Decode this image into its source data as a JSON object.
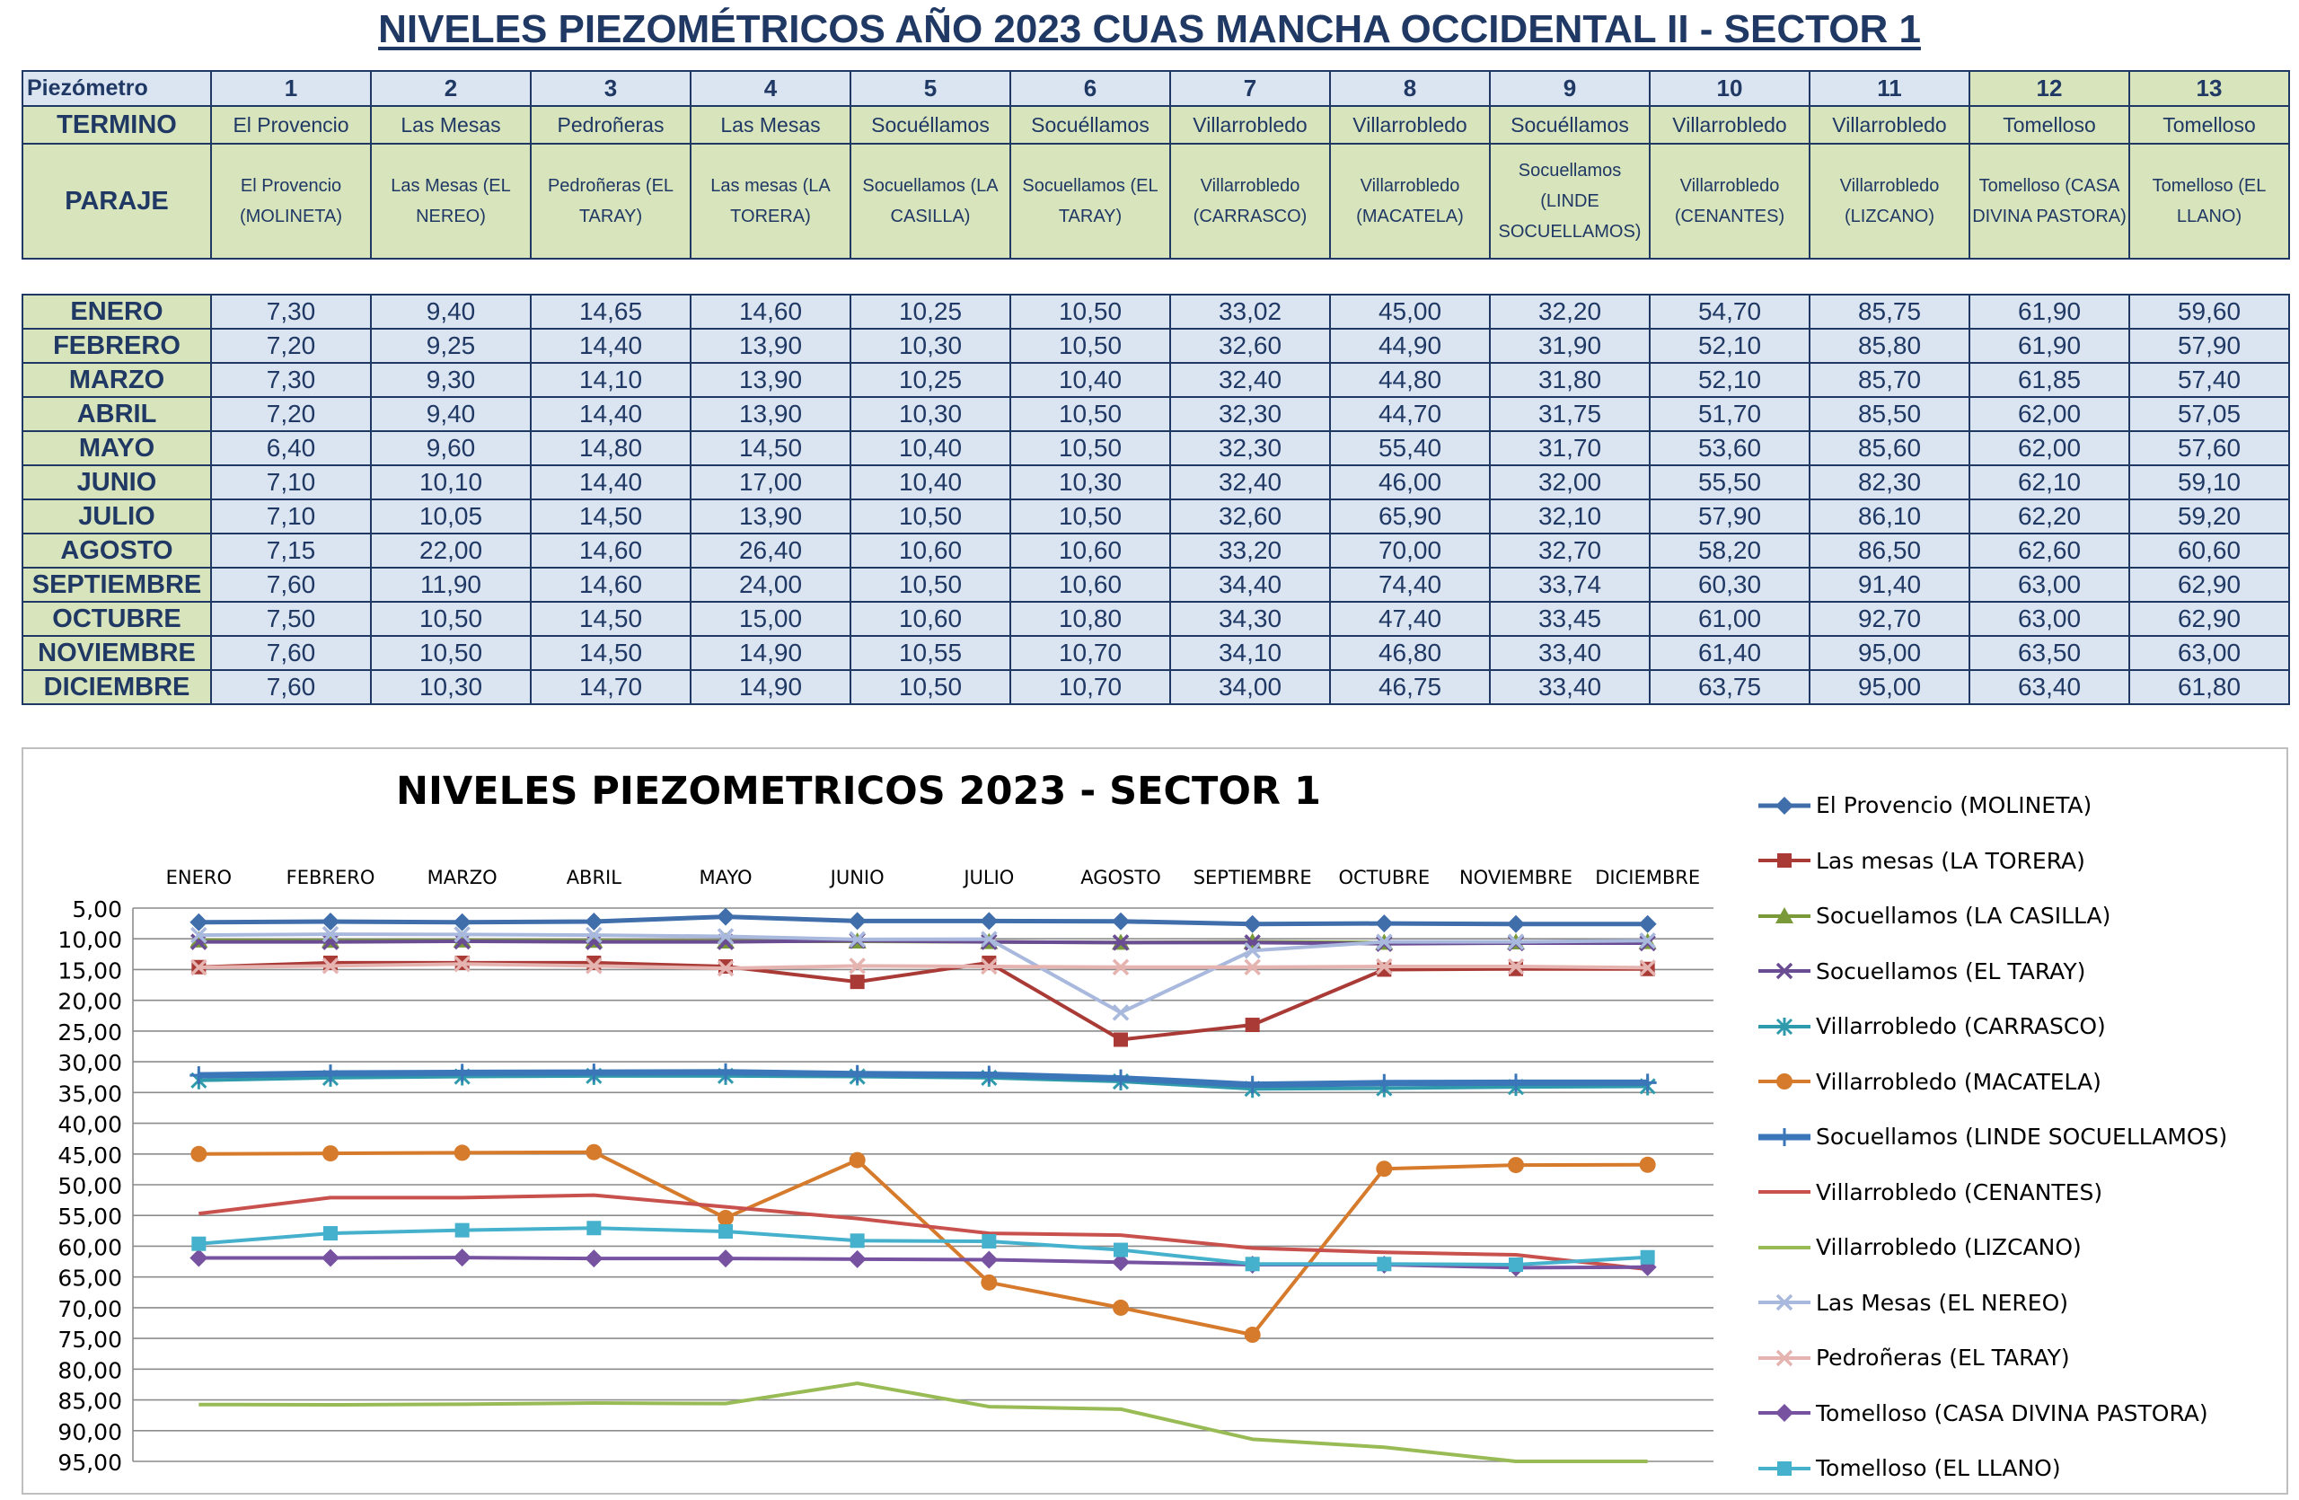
{
  "title": "NIVELES PIEZOMÉTRICOS AÑO 2023 CUAS MANCHA OCCIDENTAL II - SECTOR 1",
  "table": {
    "header_labels": {
      "piezometro": "Piezómetro",
      "termino": "TERMINO",
      "paraje": "PARAJE"
    },
    "columns": [
      {
        "num": "1",
        "termino": "El Provencio",
        "paraje": "El Provencio (MOLINETA)"
      },
      {
        "num": "2",
        "termino": "Las Mesas",
        "paraje": "Las Mesas (EL NEREO)"
      },
      {
        "num": "3",
        "termino": "Pedroñeras",
        "paraje": "Pedroñeras (EL TARAY)"
      },
      {
        "num": "4",
        "termino": "Las Mesas",
        "paraje": "Las mesas (LA TORERA)"
      },
      {
        "num": "5",
        "termino": "Socuéllamos",
        "paraje": "Socuellamos (LA CASILLA)"
      },
      {
        "num": "6",
        "termino": "Socuéllamos",
        "paraje": "Socuellamos (EL TARAY)"
      },
      {
        "num": "7",
        "termino": "Villarrobledo",
        "paraje": "Villarrobledo (CARRASCO)"
      },
      {
        "num": "8",
        "termino": "Villarrobledo",
        "paraje": "Villarrobledo (MACATELA)"
      },
      {
        "num": "9",
        "termino": "Socuéllamos",
        "paraje": "Socuellamos (LINDE SOCUELLAMOS)"
      },
      {
        "num": "10",
        "termino": "Villarrobledo",
        "paraje": "Villarrobledo (CENANTES)"
      },
      {
        "num": "11",
        "termino": "Villarrobledo",
        "paraje": "Villarrobledo (LIZCANO)"
      },
      {
        "num": "12",
        "termino": "Tomelloso",
        "paraje": "Tomelloso (CASA DIVINA PASTORA)"
      },
      {
        "num": "13",
        "termino": "Tomelloso",
        "paraje": "Tomelloso (EL LLANO)"
      }
    ],
    "rows": [
      {
        "month": "ENERO",
        "values": [
          "7,30",
          "9,40",
          "14,65",
          "14,60",
          "10,25",
          "10,50",
          "33,02",
          "45,00",
          "32,20",
          "54,70",
          "85,75",
          "61,90",
          "59,60"
        ]
      },
      {
        "month": "FEBRERO",
        "values": [
          "7,20",
          "9,25",
          "14,40",
          "13,90",
          "10,30",
          "10,50",
          "32,60",
          "44,90",
          "31,90",
          "52,10",
          "85,80",
          "61,90",
          "57,90"
        ]
      },
      {
        "month": "MARZO",
        "values": [
          "7,30",
          "9,30",
          "14,10",
          "13,90",
          "10,25",
          "10,40",
          "32,40",
          "44,80",
          "31,80",
          "52,10",
          "85,70",
          "61,85",
          "57,40"
        ]
      },
      {
        "month": "ABRIL",
        "values": [
          "7,20",
          "9,40",
          "14,40",
          "13,90",
          "10,30",
          "10,50",
          "32,30",
          "44,70",
          "31,75",
          "51,70",
          "85,50",
          "62,00",
          "57,05"
        ]
      },
      {
        "month": "MAYO",
        "values": [
          "6,40",
          "9,60",
          "14,80",
          "14,50",
          "10,40",
          "10,50",
          "32,30",
          "55,40",
          "31,70",
          "53,60",
          "85,60",
          "62,00",
          "57,60"
        ]
      },
      {
        "month": "JUNIO",
        "values": [
          "7,10",
          "10,10",
          "14,40",
          "17,00",
          "10,40",
          "10,30",
          "32,40",
          "46,00",
          "32,00",
          "55,50",
          "82,30",
          "62,10",
          "59,10"
        ]
      },
      {
        "month": "JULIO",
        "values": [
          "7,10",
          "10,05",
          "14,50",
          "13,90",
          "10,50",
          "10,50",
          "32,60",
          "65,90",
          "32,10",
          "57,90",
          "86,10",
          "62,20",
          "59,20"
        ]
      },
      {
        "month": "AGOSTO",
        "values": [
          "7,15",
          "22,00",
          "14,60",
          "26,40",
          "10,60",
          "10,60",
          "33,20",
          "70,00",
          "32,70",
          "58,20",
          "86,50",
          "62,60",
          "60,60"
        ]
      },
      {
        "month": "SEPTIEMBRE",
        "values": [
          "7,60",
          "11,90",
          "14,60",
          "24,00",
          "10,50",
          "10,60",
          "34,40",
          "74,40",
          "33,74",
          "60,30",
          "91,40",
          "63,00",
          "62,90"
        ]
      },
      {
        "month": "OCTUBRE",
        "values": [
          "7,50",
          "10,50",
          "14,50",
          "15,00",
          "10,60",
          "10,80",
          "34,30",
          "47,40",
          "33,45",
          "61,00",
          "92,70",
          "63,00",
          "62,90"
        ]
      },
      {
        "month": "NOVIEMBRE",
        "values": [
          "7,60",
          "10,50",
          "14,50",
          "14,90",
          "10,55",
          "10,70",
          "34,10",
          "46,80",
          "33,40",
          "61,40",
          "95,00",
          "63,50",
          "63,00"
        ]
      },
      {
        "month": "DICIEMBRE",
        "values": [
          "7,60",
          "10,30",
          "14,70",
          "14,90",
          "10,50",
          "10,70",
          "34,00",
          "46,75",
          "33,40",
          "63,75",
          "95,00",
          "63,40",
          "61,80"
        ]
      }
    ]
  },
  "chart_data": {
    "type": "line",
    "title": "NIVELES PIEZOMETRICOS 2023 - SECTOR 1",
    "xlabel": "",
    "ylabel": "",
    "categories": [
      "ENERO",
      "FEBRERO",
      "MARZO",
      "ABRIL",
      "MAYO",
      "JUNIO",
      "JULIO",
      "AGOSTO",
      "SEPTIEMBRE",
      "OCTUBRE",
      "NOVIEMBRE",
      "DICIEMBRE"
    ],
    "x_axis_position": "top",
    "y_reversed": true,
    "ylim": [
      5,
      95
    ],
    "yticks": [
      5,
      10,
      15,
      20,
      25,
      30,
      35,
      40,
      45,
      50,
      55,
      60,
      65,
      70,
      75,
      80,
      85,
      90,
      95
    ],
    "ytick_labels": [
      "5,00",
      "10,00",
      "15,00",
      "20,00",
      "25,00",
      "30,00",
      "35,00",
      "40,00",
      "45,00",
      "50,00",
      "55,00",
      "60,00",
      "65,00",
      "70,00",
      "75,00",
      "80,00",
      "85,00",
      "90,00",
      "95,00"
    ],
    "grid": true,
    "legend_position": "right",
    "series": [
      {
        "name": "El Provencio (MOLINETA)",
        "color": "#3f6eab",
        "marker": "diamond",
        "width": 5,
        "values": [
          7.3,
          7.2,
          7.3,
          7.2,
          6.4,
          7.1,
          7.1,
          7.15,
          7.6,
          7.5,
          7.6,
          7.6
        ]
      },
      {
        "name": "Las mesas (LA TORERA)",
        "color": "#a93a36",
        "marker": "square",
        "width": 4,
        "values": [
          14.6,
          13.9,
          13.9,
          13.9,
          14.5,
          17.0,
          13.9,
          26.4,
          24.0,
          15.0,
          14.9,
          14.9
        ]
      },
      {
        "name": "Socuellamos  (LA CASILLA)",
        "color": "#7a9a3a",
        "marker": "triangle",
        "width": 4,
        "values": [
          10.25,
          10.3,
          10.25,
          10.3,
          10.4,
          10.4,
          10.5,
          10.6,
          10.5,
          10.6,
          10.55,
          10.5
        ]
      },
      {
        "name": "Socuellamos (EL TARAY)",
        "color": "#6a4c93",
        "marker": "x",
        "width": 4,
        "values": [
          10.5,
          10.5,
          10.4,
          10.5,
          10.5,
          10.3,
          10.5,
          10.6,
          10.6,
          10.8,
          10.7,
          10.7
        ]
      },
      {
        "name": "Villarrobledo (CARRASCO)",
        "color": "#2e9aab",
        "marker": "star",
        "width": 4,
        "values": [
          33.02,
          32.6,
          32.4,
          32.3,
          32.3,
          32.4,
          32.6,
          33.2,
          34.4,
          34.3,
          34.1,
          34.0
        ]
      },
      {
        "name": "Villarrobledo (MACATELA)",
        "color": "#d67a2c",
        "marker": "circle",
        "width": 4,
        "values": [
          45.0,
          44.9,
          44.8,
          44.7,
          55.4,
          46.0,
          65.9,
          70.0,
          74.4,
          47.4,
          46.8,
          46.75
        ]
      },
      {
        "name": "Socuellamos (LINDE SOCUELLAMOS)",
        "color": "#3a76b8",
        "marker": "plus",
        "width": 7,
        "values": [
          32.2,
          31.9,
          31.8,
          31.75,
          31.7,
          32.0,
          32.1,
          32.7,
          33.74,
          33.45,
          33.4,
          33.4
        ]
      },
      {
        "name": "Villarrobledo  (CENANTES)",
        "color": "#c8504d",
        "marker": "none",
        "width": 4,
        "values": [
          54.7,
          52.1,
          52.1,
          51.7,
          53.6,
          55.5,
          57.9,
          58.2,
          60.3,
          61.0,
          61.4,
          63.75
        ]
      },
      {
        "name": "Villarrobledo (LIZCANO)",
        "color": "#99bb55",
        "marker": "none",
        "width": 4,
        "values": [
          85.75,
          85.8,
          85.7,
          85.5,
          85.6,
          82.3,
          86.1,
          86.5,
          91.4,
          92.7,
          95.0,
          95.0
        ]
      },
      {
        "name": "Las Mesas (EL NEREO)",
        "color": "#a9b9dd",
        "marker": "x",
        "width": 4,
        "values": [
          9.4,
          9.25,
          9.3,
          9.4,
          9.6,
          10.1,
          10.05,
          22.0,
          11.9,
          10.5,
          10.5,
          10.3
        ]
      },
      {
        "name": "Pedroñeras (EL TARAY)",
        "color": "#e5b3b0",
        "marker": "x",
        "width": 4,
        "values": [
          14.65,
          14.4,
          14.1,
          14.4,
          14.8,
          14.4,
          14.5,
          14.6,
          14.6,
          14.5,
          14.5,
          14.7
        ]
      },
      {
        "name": "Tomelloso (CASA DIVINA PASTORA)",
        "color": "#7652a0",
        "marker": "diamond",
        "width": 4,
        "values": [
          61.9,
          61.9,
          61.85,
          62.0,
          62.0,
          62.1,
          62.2,
          62.6,
          63.0,
          63.0,
          63.5,
          63.4
        ]
      },
      {
        "name": "Tomelloso (EL LLANO)",
        "color": "#45b1cc",
        "marker": "square",
        "width": 4,
        "values": [
          59.6,
          57.9,
          57.4,
          57.05,
          57.6,
          59.1,
          59.2,
          60.6,
          62.9,
          62.9,
          63.0,
          61.8
        ]
      }
    ]
  }
}
